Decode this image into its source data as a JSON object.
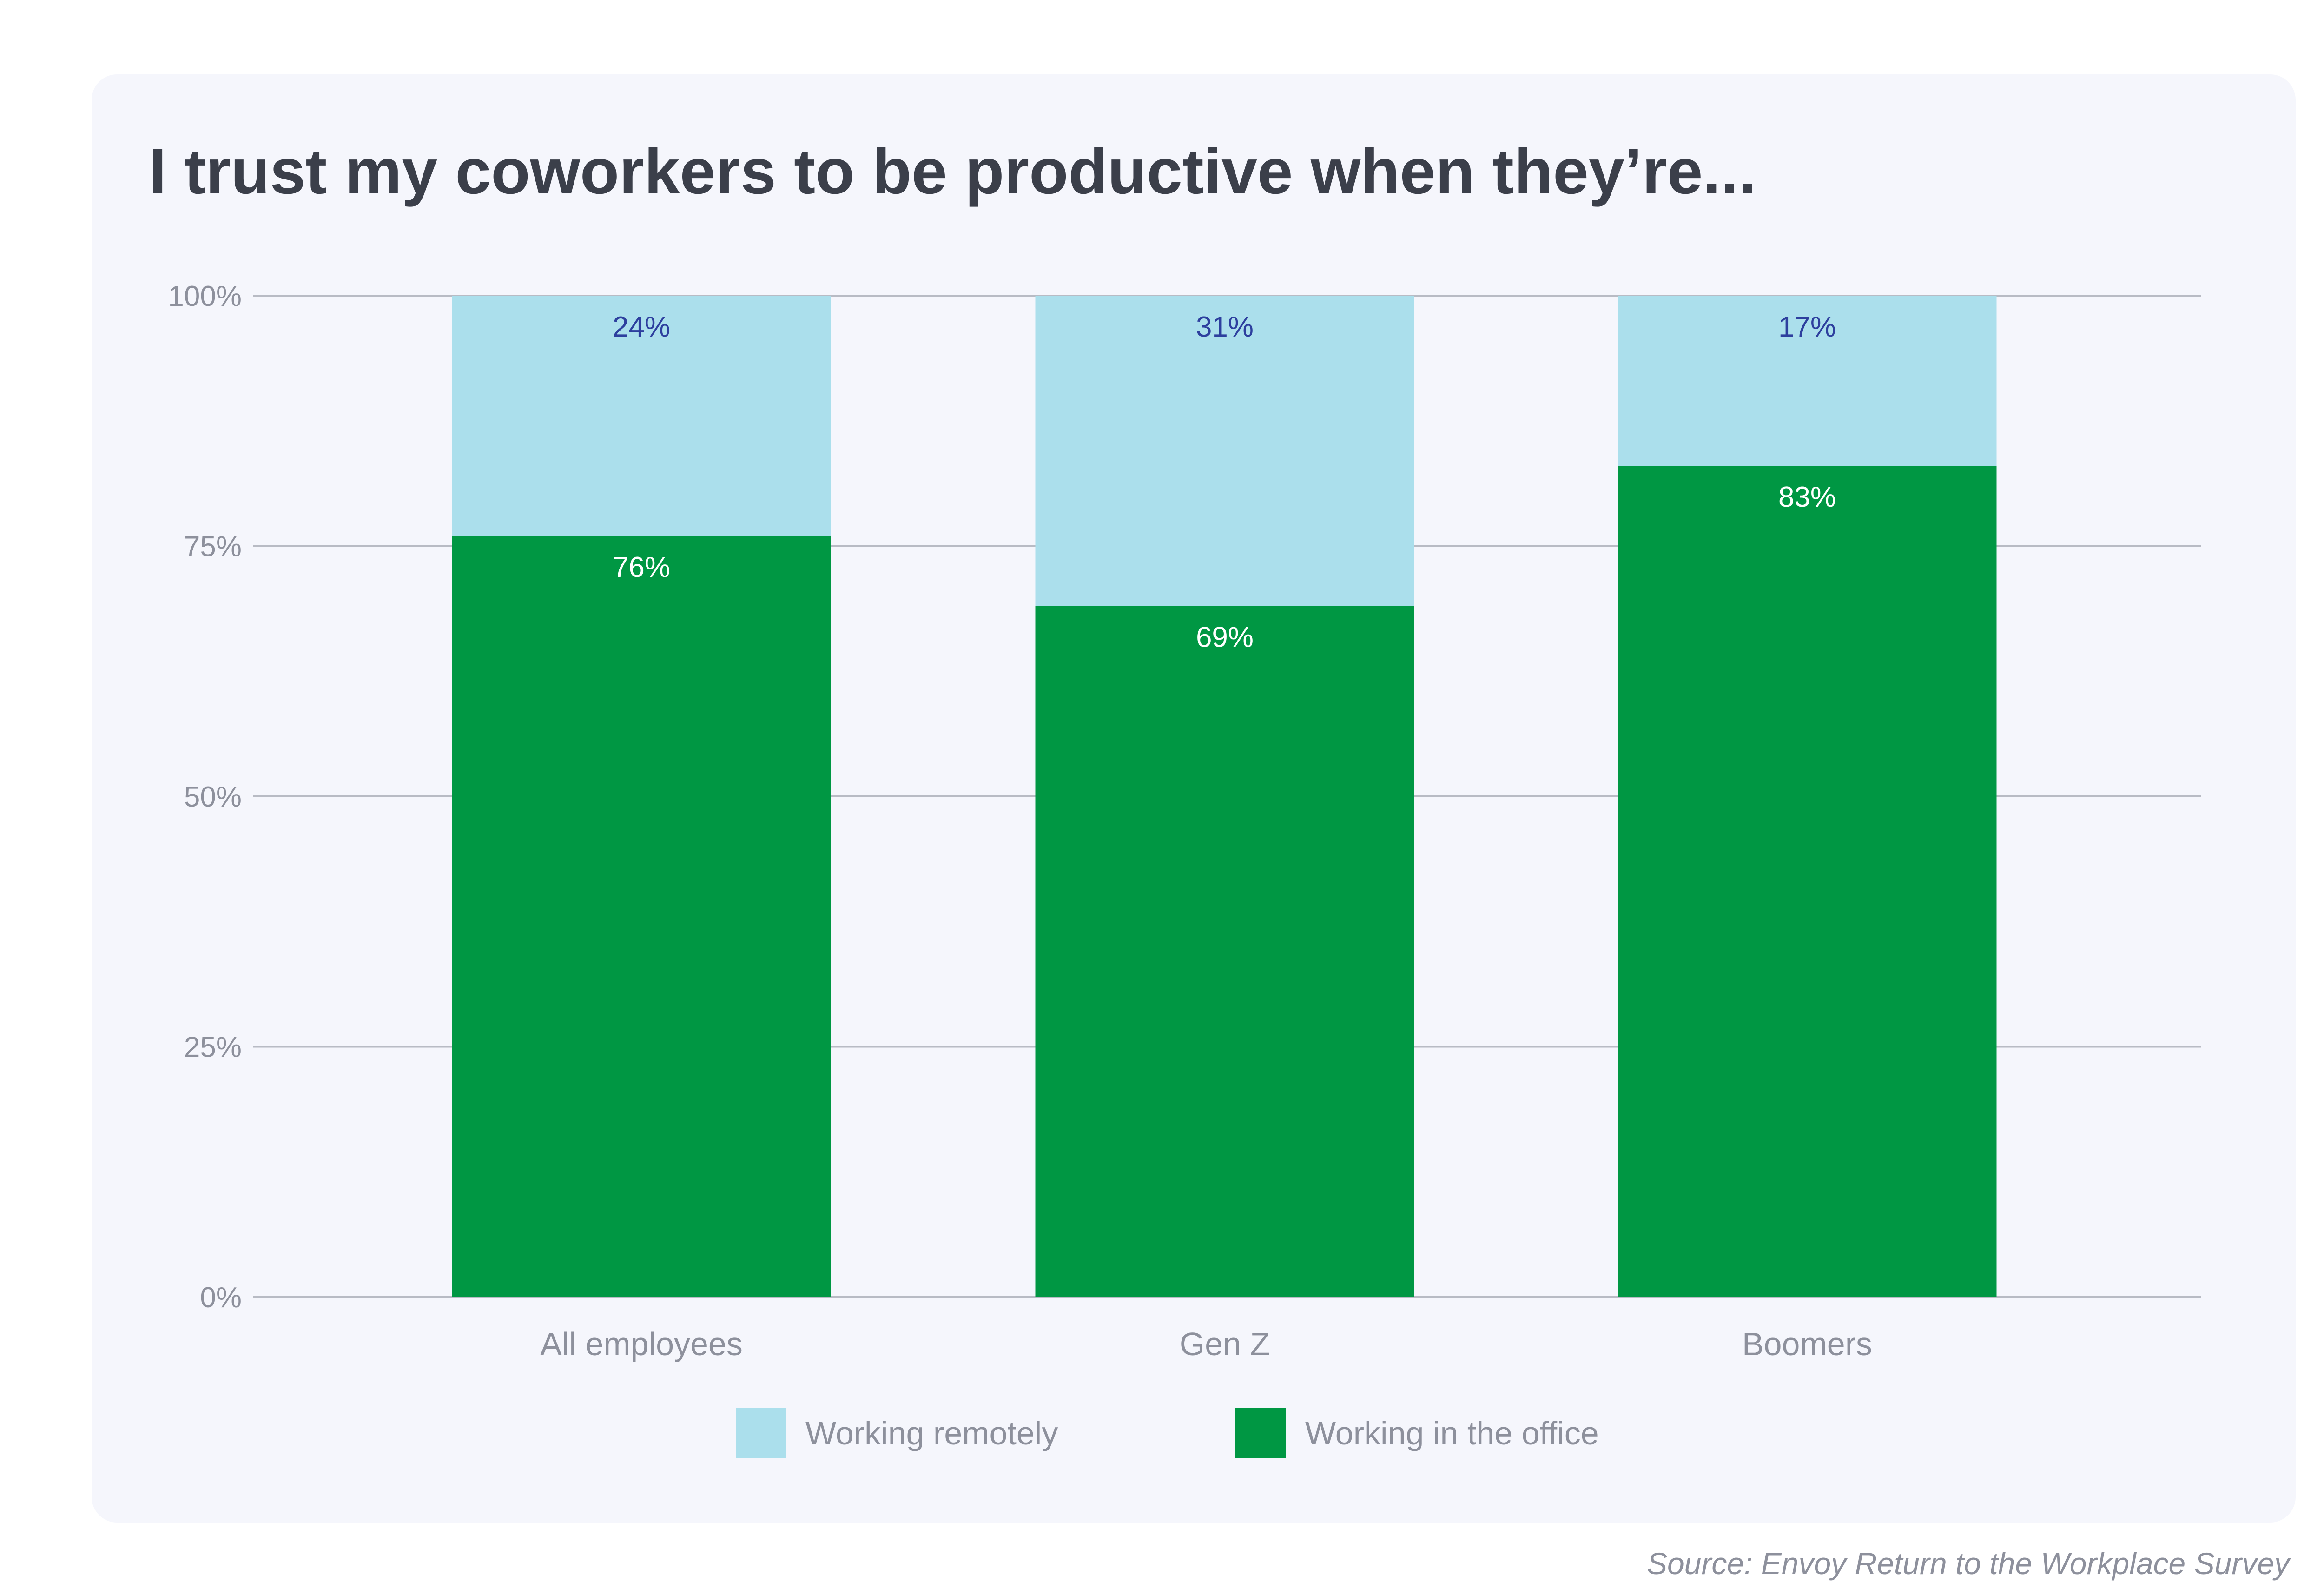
{
  "chart_data": {
    "type": "bar",
    "stacked": true,
    "title": "I trust my coworkers to be productive when they’re...",
    "categories": [
      "All employees",
      "Gen Z",
      "Boomers"
    ],
    "series": [
      {
        "name": "Working in the office",
        "values": [
          76,
          69,
          83
        ],
        "labels": [
          "76%",
          "69%",
          "83%"
        ],
        "color": "#009743",
        "label_color": "#ffffff"
      },
      {
        "name": "Working remotely",
        "values": [
          24,
          31,
          17
        ],
        "labels": [
          "24%",
          "31%",
          "17%"
        ],
        "color": "#abdfec",
        "label_color": "#2d3f9e"
      }
    ],
    "y_ticks": [
      "0%",
      "25%",
      "50%",
      "75%",
      "100%"
    ],
    "y_tick_values": [
      0,
      25,
      50,
      75,
      100
    ],
    "ylim": [
      0,
      100
    ],
    "xlabel": "",
    "ylabel": "",
    "grid": true,
    "legend_position": "bottom-center",
    "legend": [
      "Working remotely",
      "Working in the office"
    ],
    "source": "Source: Envoy Return to the Workplace Survey"
  },
  "colors": {
    "card_background": "#f5f6fc",
    "grid_line": "#b8bbc4",
    "axis_text": "#8d909c",
    "title_text": "#3b3f4a"
  }
}
